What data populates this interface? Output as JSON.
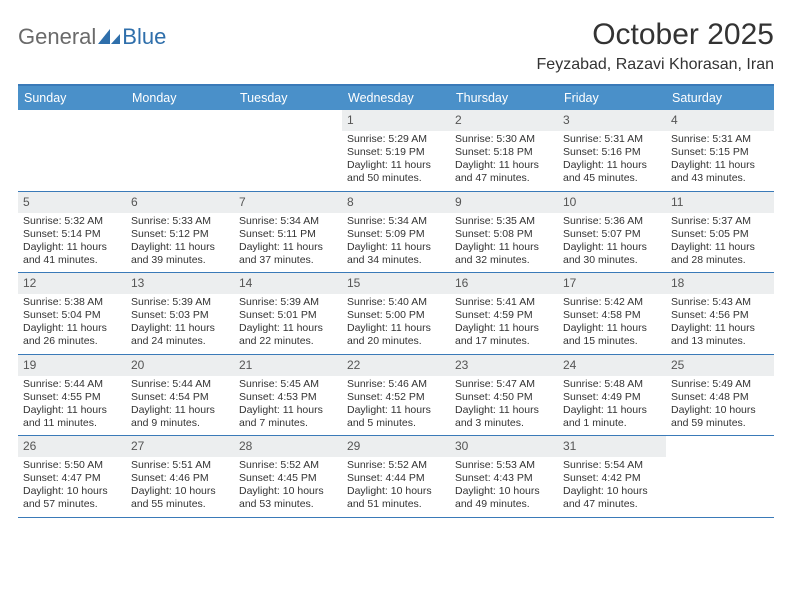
{
  "brand": {
    "text1": "General",
    "text2": "Blue"
  },
  "title": "October 2025",
  "location": "Feyzabad, Razavi Khorasan, Iran",
  "day_header_bg": "#4a90c9",
  "rule_color": "#3a7ab8",
  "daynum_bg": "#eceeef",
  "day_names": [
    "Sunday",
    "Monday",
    "Tuesday",
    "Wednesday",
    "Thursday",
    "Friday",
    "Saturday"
  ],
  "weeks": [
    [
      {
        "n": "",
        "sunrise": "",
        "sunset": "",
        "daylight": ""
      },
      {
        "n": "",
        "sunrise": "",
        "sunset": "",
        "daylight": ""
      },
      {
        "n": "",
        "sunrise": "",
        "sunset": "",
        "daylight": ""
      },
      {
        "n": "1",
        "sunrise": "Sunrise: 5:29 AM",
        "sunset": "Sunset: 5:19 PM",
        "daylight": "Daylight: 11 hours and 50 minutes."
      },
      {
        "n": "2",
        "sunrise": "Sunrise: 5:30 AM",
        "sunset": "Sunset: 5:18 PM",
        "daylight": "Daylight: 11 hours and 47 minutes."
      },
      {
        "n": "3",
        "sunrise": "Sunrise: 5:31 AM",
        "sunset": "Sunset: 5:16 PM",
        "daylight": "Daylight: 11 hours and 45 minutes."
      },
      {
        "n": "4",
        "sunrise": "Sunrise: 5:31 AM",
        "sunset": "Sunset: 5:15 PM",
        "daylight": "Daylight: 11 hours and 43 minutes."
      }
    ],
    [
      {
        "n": "5",
        "sunrise": "Sunrise: 5:32 AM",
        "sunset": "Sunset: 5:14 PM",
        "daylight": "Daylight: 11 hours and 41 minutes."
      },
      {
        "n": "6",
        "sunrise": "Sunrise: 5:33 AM",
        "sunset": "Sunset: 5:12 PM",
        "daylight": "Daylight: 11 hours and 39 minutes."
      },
      {
        "n": "7",
        "sunrise": "Sunrise: 5:34 AM",
        "sunset": "Sunset: 5:11 PM",
        "daylight": "Daylight: 11 hours and 37 minutes."
      },
      {
        "n": "8",
        "sunrise": "Sunrise: 5:34 AM",
        "sunset": "Sunset: 5:09 PM",
        "daylight": "Daylight: 11 hours and 34 minutes."
      },
      {
        "n": "9",
        "sunrise": "Sunrise: 5:35 AM",
        "sunset": "Sunset: 5:08 PM",
        "daylight": "Daylight: 11 hours and 32 minutes."
      },
      {
        "n": "10",
        "sunrise": "Sunrise: 5:36 AM",
        "sunset": "Sunset: 5:07 PM",
        "daylight": "Daylight: 11 hours and 30 minutes."
      },
      {
        "n": "11",
        "sunrise": "Sunrise: 5:37 AM",
        "sunset": "Sunset: 5:05 PM",
        "daylight": "Daylight: 11 hours and 28 minutes."
      }
    ],
    [
      {
        "n": "12",
        "sunrise": "Sunrise: 5:38 AM",
        "sunset": "Sunset: 5:04 PM",
        "daylight": "Daylight: 11 hours and 26 minutes."
      },
      {
        "n": "13",
        "sunrise": "Sunrise: 5:39 AM",
        "sunset": "Sunset: 5:03 PM",
        "daylight": "Daylight: 11 hours and 24 minutes."
      },
      {
        "n": "14",
        "sunrise": "Sunrise: 5:39 AM",
        "sunset": "Sunset: 5:01 PM",
        "daylight": "Daylight: 11 hours and 22 minutes."
      },
      {
        "n": "15",
        "sunrise": "Sunrise: 5:40 AM",
        "sunset": "Sunset: 5:00 PM",
        "daylight": "Daylight: 11 hours and 20 minutes."
      },
      {
        "n": "16",
        "sunrise": "Sunrise: 5:41 AM",
        "sunset": "Sunset: 4:59 PM",
        "daylight": "Daylight: 11 hours and 17 minutes."
      },
      {
        "n": "17",
        "sunrise": "Sunrise: 5:42 AM",
        "sunset": "Sunset: 4:58 PM",
        "daylight": "Daylight: 11 hours and 15 minutes."
      },
      {
        "n": "18",
        "sunrise": "Sunrise: 5:43 AM",
        "sunset": "Sunset: 4:56 PM",
        "daylight": "Daylight: 11 hours and 13 minutes."
      }
    ],
    [
      {
        "n": "19",
        "sunrise": "Sunrise: 5:44 AM",
        "sunset": "Sunset: 4:55 PM",
        "daylight": "Daylight: 11 hours and 11 minutes."
      },
      {
        "n": "20",
        "sunrise": "Sunrise: 5:44 AM",
        "sunset": "Sunset: 4:54 PM",
        "daylight": "Daylight: 11 hours and 9 minutes."
      },
      {
        "n": "21",
        "sunrise": "Sunrise: 5:45 AM",
        "sunset": "Sunset: 4:53 PM",
        "daylight": "Daylight: 11 hours and 7 minutes."
      },
      {
        "n": "22",
        "sunrise": "Sunrise: 5:46 AM",
        "sunset": "Sunset: 4:52 PM",
        "daylight": "Daylight: 11 hours and 5 minutes."
      },
      {
        "n": "23",
        "sunrise": "Sunrise: 5:47 AM",
        "sunset": "Sunset: 4:50 PM",
        "daylight": "Daylight: 11 hours and 3 minutes."
      },
      {
        "n": "24",
        "sunrise": "Sunrise: 5:48 AM",
        "sunset": "Sunset: 4:49 PM",
        "daylight": "Daylight: 11 hours and 1 minute."
      },
      {
        "n": "25",
        "sunrise": "Sunrise: 5:49 AM",
        "sunset": "Sunset: 4:48 PM",
        "daylight": "Daylight: 10 hours and 59 minutes."
      }
    ],
    [
      {
        "n": "26",
        "sunrise": "Sunrise: 5:50 AM",
        "sunset": "Sunset: 4:47 PM",
        "daylight": "Daylight: 10 hours and 57 minutes."
      },
      {
        "n": "27",
        "sunrise": "Sunrise: 5:51 AM",
        "sunset": "Sunset: 4:46 PM",
        "daylight": "Daylight: 10 hours and 55 minutes."
      },
      {
        "n": "28",
        "sunrise": "Sunrise: 5:52 AM",
        "sunset": "Sunset: 4:45 PM",
        "daylight": "Daylight: 10 hours and 53 minutes."
      },
      {
        "n": "29",
        "sunrise": "Sunrise: 5:52 AM",
        "sunset": "Sunset: 4:44 PM",
        "daylight": "Daylight: 10 hours and 51 minutes."
      },
      {
        "n": "30",
        "sunrise": "Sunrise: 5:53 AM",
        "sunset": "Sunset: 4:43 PM",
        "daylight": "Daylight: 10 hours and 49 minutes."
      },
      {
        "n": "31",
        "sunrise": "Sunrise: 5:54 AM",
        "sunset": "Sunset: 4:42 PM",
        "daylight": "Daylight: 10 hours and 47 minutes."
      },
      {
        "n": "",
        "sunrise": "",
        "sunset": "",
        "daylight": ""
      }
    ]
  ]
}
